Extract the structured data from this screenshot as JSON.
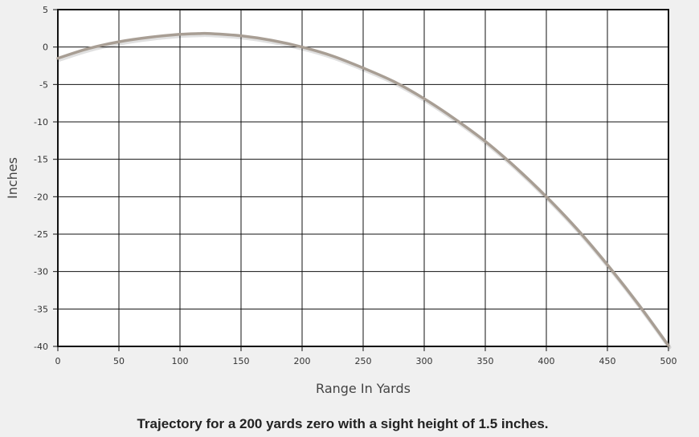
{
  "chart_data": {
    "type": "line",
    "title": "",
    "caption": "Trajectory for a 200 yards zero with a sight height of 1.5 inches.",
    "xlabel": "Range In Yards",
    "ylabel": "Inches",
    "xlim": [
      0,
      500
    ],
    "ylim": [
      -40,
      5
    ],
    "x_ticks": [
      0,
      50,
      100,
      150,
      200,
      250,
      300,
      350,
      400,
      450,
      500
    ],
    "y_ticks": [
      5,
      0,
      -5,
      -10,
      -15,
      -20,
      -25,
      -30,
      -35,
      -40
    ],
    "grid": true,
    "legend": "none",
    "series": [
      {
        "line_color": "#a89e94",
        "x": [
          0,
          25,
          50,
          75,
          100,
          115,
          125,
          150,
          175,
          200,
          225,
          250,
          275,
          300,
          325,
          350,
          375,
          400,
          425,
          450,
          475,
          500
        ],
        "y": [
          -1.5,
          -0.2,
          0.7,
          1.3,
          1.7,
          1.8,
          1.8,
          1.5,
          0.9,
          0.0,
          -1.2,
          -2.8,
          -4.6,
          -6.9,
          -9.6,
          -12.6,
          -16.1,
          -20.0,
          -24.3,
          -29.1,
          -34.3,
          -39.9
        ]
      }
    ]
  }
}
